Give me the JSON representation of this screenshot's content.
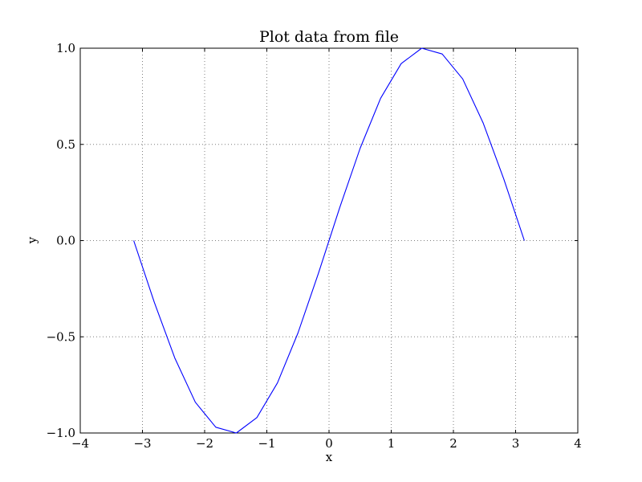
{
  "chart_data": {
    "type": "line",
    "title": "Plot data from file",
    "xlabel": "x",
    "ylabel": "y",
    "xlim": [
      -4,
      4
    ],
    "ylim": [
      -1.0,
      1.0
    ],
    "xticks": [
      -4,
      -3,
      -2,
      -1,
      0,
      1,
      2,
      3,
      4
    ],
    "xtick_labels": [
      "−4",
      "−3",
      "−2",
      "−1",
      "0",
      "1",
      "2",
      "3",
      "4"
    ],
    "yticks": [
      -1.0,
      -0.5,
      0.0,
      0.5,
      1.0
    ],
    "ytick_labels": [
      "−1.0",
      "−0.5",
      "0.0",
      "0.5",
      "1.0"
    ],
    "grid": true,
    "series": [
      {
        "color": "#0000ff",
        "x": [
          -3.14,
          -2.81,
          -2.48,
          -2.15,
          -1.82,
          -1.49,
          -1.16,
          -0.83,
          -0.5,
          -0.17,
          0.17,
          0.5,
          0.83,
          1.16,
          1.49,
          1.82,
          2.15,
          2.48,
          2.81,
          3.14
        ],
        "y": [
          0.0,
          -0.32,
          -0.61,
          -0.84,
          -0.97,
          -1.0,
          -0.92,
          -0.74,
          -0.48,
          -0.17,
          0.17,
          0.48,
          0.74,
          0.92,
          1.0,
          0.97,
          0.84,
          0.61,
          0.32,
          0.0
        ]
      }
    ]
  }
}
